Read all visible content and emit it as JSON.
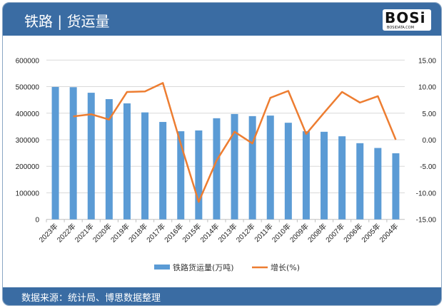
{
  "header": {
    "title": "铁路 | 货运量",
    "logo_text": "BOSi",
    "logo_sub": "BOSIDATA.COM"
  },
  "footer": {
    "source": "数据来源：统计局、博思数据整理"
  },
  "colors": {
    "bar": "#5b9bd5",
    "line": "#ed7d31",
    "header": "#3a6ca3"
  },
  "chart_data": {
    "type": "bar+line",
    "categories": [
      "2023年",
      "2022年",
      "2021年",
      "2020年",
      "2019年",
      "2018年",
      "2017年",
      "2016年",
      "2015年",
      "2014年",
      "2013年",
      "2012年",
      "2011年",
      "2010年",
      "2009年",
      "2008年",
      "2007年",
      "2006年",
      "2005年",
      "2004年"
    ],
    "series": [
      {
        "name": "铁路货运量(万吨)",
        "type": "bar",
        "axis": "left",
        "values": [
          499000,
          498000,
          477000,
          453000,
          437000,
          403000,
          367000,
          332000,
          335000,
          381000,
          397000,
          389000,
          391000,
          364000,
          332000,
          330000,
          313000,
          287000,
          269000,
          249000
        ]
      },
      {
        "name": "增长(%)",
        "type": "line",
        "axis": "right",
        "values": [
          null,
          4.4,
          4.8,
          3.8,
          9.0,
          9.1,
          10.7,
          -0.8,
          -11.7,
          -3.9,
          1.5,
          -0.7,
          7.9,
          9.2,
          1.1,
          5.1,
          9.0,
          7.0,
          8.2,
          0.0
        ]
      }
    ],
    "y_left": {
      "range": [
        0,
        600000
      ],
      "ticks": [
        "0",
        "100000",
        "200000",
        "300000",
        "400000",
        "500000",
        "600000"
      ]
    },
    "y_right": {
      "range": [
        -15,
        15
      ],
      "ticks": [
        "-15.00",
        "-10.00",
        "-5.00",
        "0.00",
        "5.00",
        "10.00",
        "15.00"
      ]
    },
    "grid": true,
    "legend": "bottom"
  }
}
